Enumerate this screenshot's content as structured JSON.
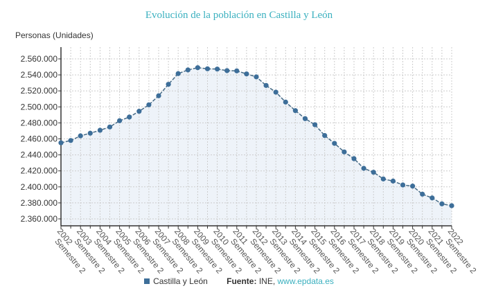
{
  "chart_data": {
    "type": "area",
    "title": "Evolución de la población en Castilla y León",
    "ylabel": "Personas (Unidades)",
    "ylim": [
      2350000,
      2575000
    ],
    "yticks": [
      2360000,
      2380000,
      2400000,
      2420000,
      2440000,
      2460000,
      2480000,
      2500000,
      2520000,
      2540000,
      2560000
    ],
    "ytick_labels": [
      "2.360.000",
      "2.380.000",
      "2.400.000",
      "2.420.000",
      "2.440.000",
      "2.460.000",
      "2.480.000",
      "2.500.000",
      "2.520.000",
      "2.540.000",
      "2.560.000"
    ],
    "grid": true,
    "xtick_labels": [
      "2002 Semestre 2",
      "2003 Semestre 2",
      "2004 Semestre 2",
      "2005 Semestre 2",
      "2006 Semestre 2",
      "2007 Semestre 2",
      "2008 Semestre 2",
      "2009 Semestre 2",
      "2010 Semestre 2",
      "2011 Semestre 2",
      "2012 Semestre 2",
      "2013 Semestre 2",
      "2014 Semestre 2",
      "2015 Semestre 2",
      "2016 Semestre 2",
      "2017 Semestre 2",
      "2018 Semestre 2",
      "2019 Semestre 2",
      "2020 Semestre 2",
      "2021 Semestre 2",
      "2022 Semestre 2"
    ],
    "series": [
      {
        "name": "Castilla y León",
        "color": "#3d6e99",
        "values": [
          2455100,
          2458000,
          2463800,
          2467100,
          2470800,
          2474900,
          2482700,
          2487300,
          2494500,
          2502600,
          2513900,
          2528200,
          2541600,
          2546200,
          2549000,
          2547600,
          2547300,
          2545300,
          2545000,
          2541200,
          2537500,
          2526800,
          2518400,
          2506000,
          2495300,
          2485300,
          2477700,
          2464200,
          2454400,
          2443700,
          2435300,
          2423200,
          2418300,
          2409900,
          2407300,
          2402400,
          2401000,
          2390900,
          2386200,
          2378800,
          2376500
        ]
      }
    ],
    "legend": "bottom"
  },
  "legend": {
    "series": "Castilla y León",
    "source_label": "Fuente:",
    "source": "INE,",
    "link": "www.epdata.es"
  }
}
